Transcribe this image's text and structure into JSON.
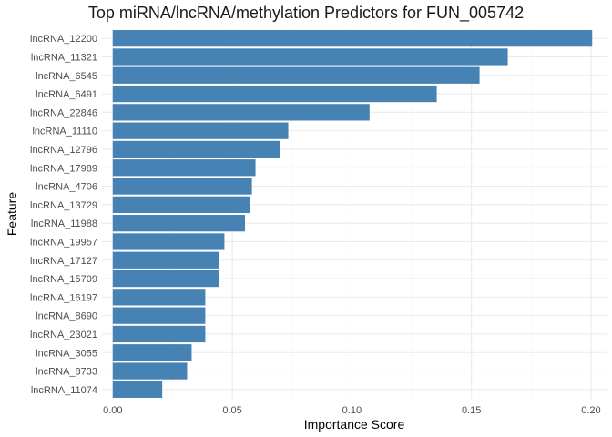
{
  "chart_data": {
    "type": "bar",
    "orientation": "horizontal",
    "title": "Top miRNA/lncRNA/methylation Predictors for FUN_005742",
    "xlabel": "Importance Score",
    "ylabel": "Feature",
    "xlim": [
      -0.0045,
      0.2065
    ],
    "x_ticks": [
      "0.00",
      "0.05",
      "0.10",
      "0.15",
      "0.20"
    ],
    "x_tick_values": [
      0,
      0.05,
      0.1,
      0.15,
      0.2
    ],
    "grid": true,
    "bar_color": "#4682B4",
    "categories": [
      "lncRNA_12200",
      "lncRNA_11321",
      "lncRNA_6545",
      "lncRNA_6491",
      "lncRNA_22846",
      "lncRNA_11110",
      "lncRNA_12796",
      "lncRNA_17989",
      "lncRNA_4706",
      "lncRNA_13729",
      "lncRNA_11988",
      "lncRNA_19957",
      "lncRNA_17127",
      "lncRNA_15709",
      "lncRNA_16197",
      "lncRNA_8690",
      "lncRNA_23021",
      "lncRNA_3055",
      "lncRNA_8733",
      "lncRNA_11074"
    ],
    "values": [
      0.2005,
      0.1652,
      0.1534,
      0.1355,
      0.1074,
      0.0734,
      0.0701,
      0.0597,
      0.0582,
      0.0572,
      0.0553,
      0.0467,
      0.0444,
      0.0444,
      0.0387,
      0.0387,
      0.0387,
      0.033,
      0.0311,
      0.0207
    ]
  }
}
